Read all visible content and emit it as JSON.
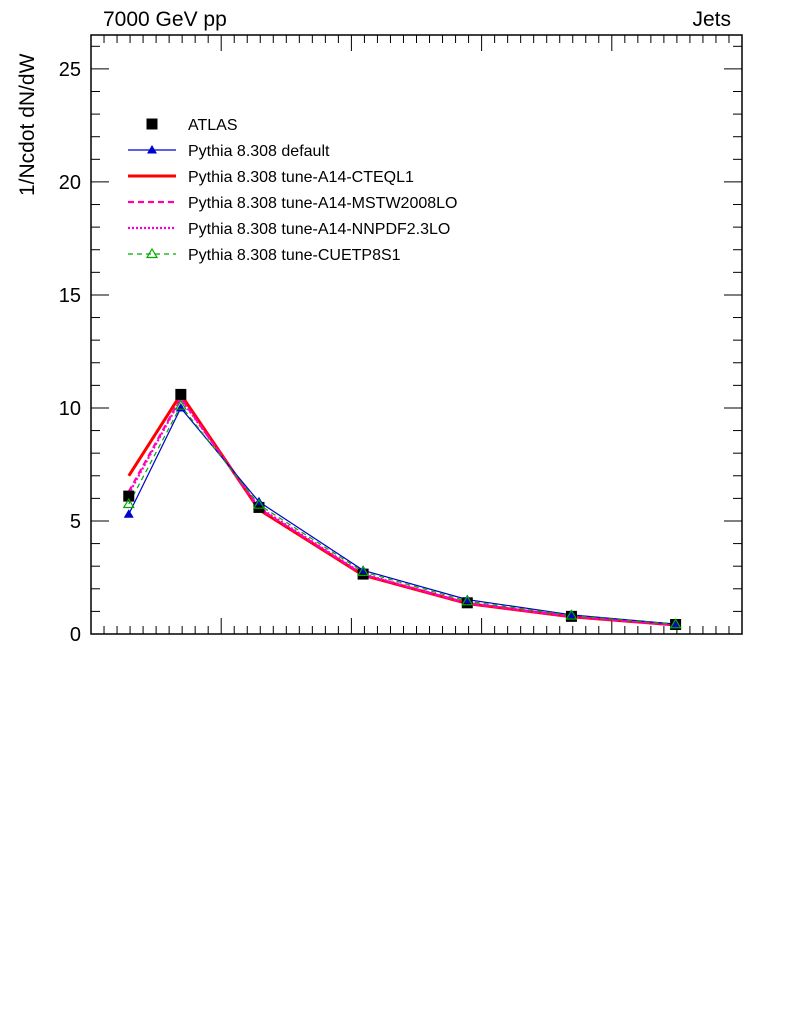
{
  "header": {
    "left": "7000 GeV pp",
    "right": "Jets"
  },
  "chart_data": {
    "type": "line",
    "title": "",
    "xlabel": "",
    "ylabel": "1/Ncdot dN/dW",
    "ylim": [
      0,
      26.5
    ],
    "yticks": [
      0,
      5,
      10,
      15,
      20,
      25
    ],
    "xlim": [
      0,
      1
    ],
    "x": [
      0.058,
      0.138,
      0.258,
      0.418,
      0.578,
      0.738,
      0.898
    ],
    "grid": false,
    "legend_position": "top-left",
    "series": [
      {
        "name": "ATLAS",
        "style": "markers",
        "marker": "square",
        "color": "#000000",
        "values": [
          6.1,
          10.6,
          5.6,
          2.65,
          1.38,
          0.78,
          0.42
        ]
      },
      {
        "name": "Pythia 8.308 default",
        "style": "line",
        "marker": "triangle-filled",
        "color": "#0000cc",
        "values": [
          5.3,
          10.0,
          5.85,
          2.82,
          1.52,
          0.85,
          0.44
        ]
      },
      {
        "name": "Pythia 8.308 tune-A14-CTEQL1",
        "style": "solid-thick",
        "color": "#ff0000",
        "values": [
          7.0,
          10.6,
          5.5,
          2.6,
          1.35,
          0.76,
          0.4
        ]
      },
      {
        "name": "Pythia 8.308 tune-A14-MSTW2008LO",
        "style": "dashed",
        "color": "#ff00aa",
        "values": [
          6.3,
          10.45,
          5.55,
          2.62,
          1.36,
          0.77,
          0.4
        ]
      },
      {
        "name": "Pythia 8.308 tune-A14-NNPDF2.3LO",
        "style": "dotted",
        "color": "#ff00cc",
        "values": [
          6.2,
          10.4,
          5.6,
          2.65,
          1.37,
          0.77,
          0.41
        ]
      },
      {
        "name": "Pythia 8.308 tune-CUETP8S1",
        "style": "dashed-thin",
        "marker": "triangle-open",
        "color": "#00aa00",
        "values": [
          5.75,
          10.1,
          5.72,
          2.75,
          1.45,
          0.82,
          0.43
        ]
      }
    ]
  }
}
